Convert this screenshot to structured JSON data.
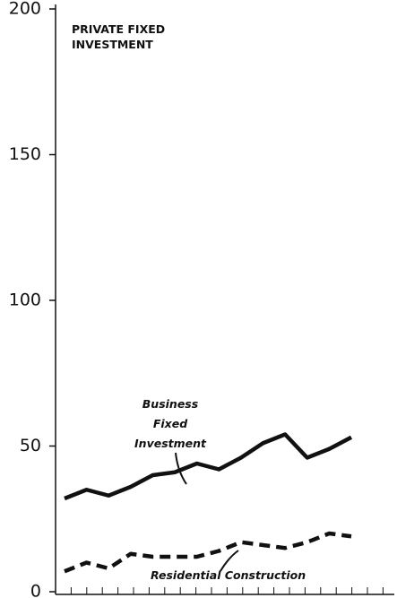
{
  "chart_data": {
    "type": "line",
    "title": "PRIVATE FIXED INVESTMENT",
    "categories": [
      null,
      null,
      null,
      null,
      null,
      null,
      null,
      null,
      null,
      null,
      null,
      null,
      null,
      null
    ],
    "series": [
      {
        "name": "Business Fixed Investment",
        "color": "#111111",
        "dash": false,
        "values": [
          32,
          35,
          33,
          36,
          40,
          41,
          44,
          42,
          46,
          51,
          54,
          46,
          49,
          53
        ]
      },
      {
        "name": "Residential Construction",
        "color": "#111111",
        "dash": true,
        "values": [
          7,
          10,
          8,
          13,
          12,
          12,
          12,
          14,
          17,
          16,
          15,
          17,
          20,
          19
        ]
      }
    ],
    "ylim": [
      0,
      200
    ],
    "yticks": [
      0,
      50,
      100,
      150,
      200
    ],
    "grid": false
  }
}
